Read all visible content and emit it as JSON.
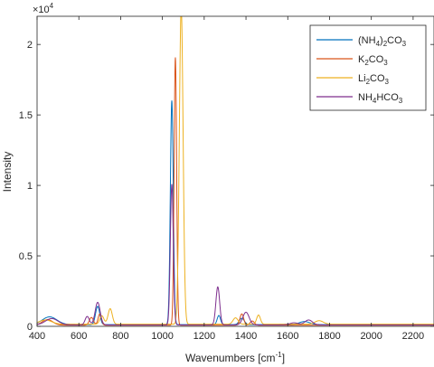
{
  "chart_data": {
    "type": "line",
    "title": "",
    "xlabel": "Wavenumbers [cm",
    "xlabel_sup": "-1",
    "xlabel_end": "]",
    "ylabel": "Intensity",
    "y_exponent_base": "×10",
    "y_exponent_power": "4",
    "xlim": [
      400,
      2300
    ],
    "ylim": [
      0,
      22000
    ],
    "x_ticks": [
      400,
      600,
      800,
      1000,
      1200,
      1400,
      1600,
      1800,
      2000,
      2200
    ],
    "x_tick_labels": [
      "400",
      "600",
      "800",
      "1000",
      "1200",
      "1400",
      "1600",
      "1800",
      "2000",
      "2200"
    ],
    "y_ticks": [
      0,
      5000,
      10000,
      15000,
      20000
    ],
    "y_tick_labels": [
      "0",
      "0.5",
      "1",
      "1.5",
      "2"
    ],
    "grid": false,
    "legend_position": "top-right",
    "series": [
      {
        "name": "(NH4)2CO3",
        "label_parts": [
          [
            "(NH",
            ""
          ],
          [
            "4",
            "sub"
          ],
          [
            ")",
            ""
          ],
          [
            "2",
            "sub"
          ],
          [
            "CO",
            ""
          ],
          [
            "3",
            "sub"
          ]
        ],
        "color": "#0072BD",
        "baseline": 120,
        "peaks": [
          {
            "x": 460,
            "h": 550,
            "w": 35
          },
          {
            "x": 690,
            "h": 1300,
            "w": 10
          },
          {
            "x": 1045,
            "h": 15900,
            "w": 7
          },
          {
            "x": 1270,
            "h": 650,
            "w": 8
          },
          {
            "x": 1380,
            "h": 450,
            "w": 12
          },
          {
            "x": 1680,
            "h": 220,
            "w": 25
          }
        ]
      },
      {
        "name": "K2CO3",
        "label_parts": [
          [
            "K",
            ""
          ],
          [
            "2",
            "sub"
          ],
          [
            "CO",
            ""
          ],
          [
            "3",
            "sub"
          ]
        ],
        "color": "#D95319",
        "baseline": 80,
        "peaks": [
          {
            "x": 450,
            "h": 400,
            "w": 25
          },
          {
            "x": 660,
            "h": 550,
            "w": 10
          },
          {
            "x": 700,
            "h": 800,
            "w": 8
          },
          {
            "x": 1062,
            "h": 19000,
            "w": 6
          },
          {
            "x": 1380,
            "h": 800,
            "w": 9
          },
          {
            "x": 1430,
            "h": 300,
            "w": 10
          }
        ]
      },
      {
        "name": "Li2CO3",
        "label_parts": [
          [
            "Li",
            ""
          ],
          [
            "2",
            "sub"
          ],
          [
            "CO",
            ""
          ],
          [
            "3",
            "sub"
          ]
        ],
        "color": "#EDB120",
        "baseline": 150,
        "peaks": [
          {
            "x": 440,
            "h": 300,
            "w": 30
          },
          {
            "x": 710,
            "h": 600,
            "w": 10
          },
          {
            "x": 750,
            "h": 1100,
            "w": 10
          },
          {
            "x": 1090,
            "h": 22500,
            "w": 9
          },
          {
            "x": 1350,
            "h": 450,
            "w": 12
          },
          {
            "x": 1460,
            "h": 650,
            "w": 9
          },
          {
            "x": 1750,
            "h": 250,
            "w": 20
          }
        ]
      },
      {
        "name": "NH4HCO3",
        "label_parts": [
          [
            "NH",
            ""
          ],
          [
            "4",
            "sub"
          ],
          [
            "HCO",
            ""
          ],
          [
            "3",
            "sub"
          ]
        ],
        "color": "#7E2F8E",
        "baseline": 100,
        "peaks": [
          {
            "x": 470,
            "h": 450,
            "w": 30
          },
          {
            "x": 640,
            "h": 600,
            "w": 10
          },
          {
            "x": 690,
            "h": 1600,
            "w": 12
          },
          {
            "x": 1045,
            "h": 10000,
            "w": 7
          },
          {
            "x": 1265,
            "h": 2700,
            "w": 9
          },
          {
            "x": 1400,
            "h": 900,
            "w": 15
          },
          {
            "x": 1630,
            "h": 150,
            "w": 20
          },
          {
            "x": 1700,
            "h": 350,
            "w": 18
          }
        ]
      }
    ]
  }
}
